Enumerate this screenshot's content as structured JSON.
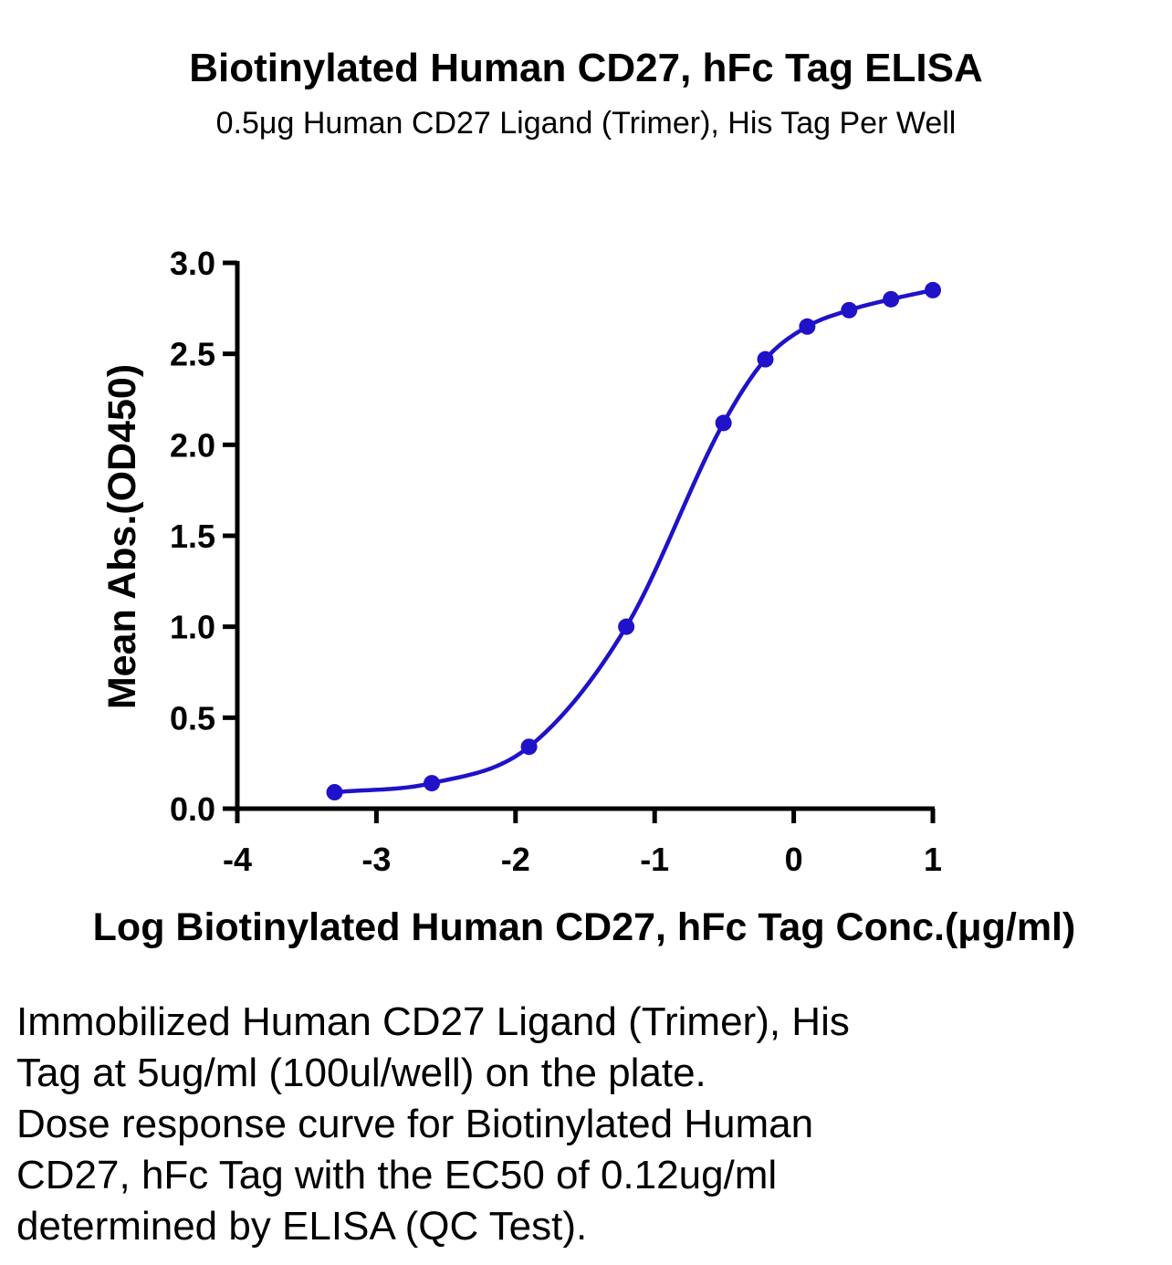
{
  "chart_data": {
    "type": "line",
    "title": "Biotinylated Human CD27, hFc Tag ELISA",
    "subtitle": "0.5μg Human CD27 Ligand (Trimer), His Tag Per Well",
    "xlabel": "Log  Biotinylated Human CD27, hFc Tag Conc.(μg/ml)",
    "ylabel": "Mean Abs.(OD450)",
    "xlim": [
      -4,
      1
    ],
    "ylim": [
      0,
      3
    ],
    "x_ticks": [
      "-4",
      "-3",
      "-2",
      "-1",
      "0",
      "1"
    ],
    "y_ticks": [
      "0.0",
      "0.5",
      "1.0",
      "1.5",
      "2.0",
      "2.5",
      "3.0"
    ],
    "grid": false,
    "series": [
      {
        "x": [
          -3.301,
          -2.602,
          -1.903,
          -1.204,
          -0.505,
          -0.204,
          0.097,
          0.398,
          0.699,
          1.0
        ],
        "y": [
          0.09,
          0.14,
          0.34,
          1.0,
          2.12,
          2.47,
          2.65,
          2.74,
          2.8,
          2.85
        ],
        "color": "#1f12c8",
        "marker": "circle",
        "fit": "four-parameter logistic"
      }
    ]
  },
  "caption": {
    "lines": [
      "Immobilized Human CD27 Ligand (Trimer), His",
      "Tag at 5ug/ml (100ul/well) on the plate.",
      "Dose response curve for Biotinylated Human",
      "CD27, hFc Tag with the EC50 of 0.12ug/ml",
      "determined by ELISA (QC Test)."
    ]
  }
}
